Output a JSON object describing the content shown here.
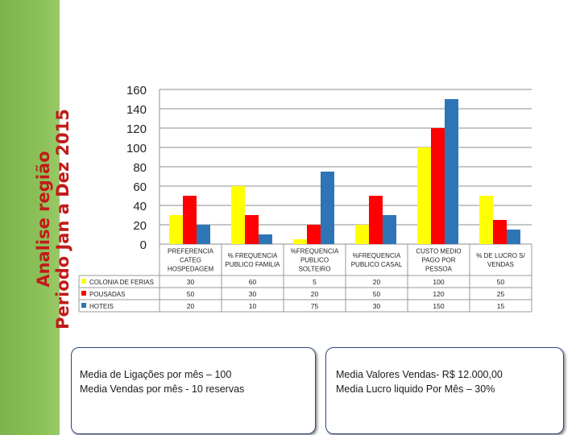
{
  "slide": {
    "side_title_line1": "Analise região",
    "side_title_line2": "Periodo Jan a Dez 2015"
  },
  "notes": {
    "left_line1": "Media de Ligações  por mês – 100",
    "left_line2": "Media Vendas por mês  - 10 reservas",
    "right_line1": "Media Valores Vendas- R$ 12.000,00",
    "right_line2": "Media Lucro liquido Por Mês – 30%"
  },
  "chart_data": {
    "type": "bar",
    "title": "",
    "xlabel": "",
    "ylabel": "",
    "ylim": [
      0,
      160
    ],
    "yticks": [
      0,
      20,
      40,
      60,
      80,
      100,
      120,
      140,
      160
    ],
    "grid": true,
    "legend_placement": "left, as data table",
    "categories": [
      [
        "PREFERENCIA",
        "CATEG",
        "HOSPEDAGEM"
      ],
      [
        "% FREQUENCIA",
        "PUBLICO FAMILIA"
      ],
      [
        "%FREQUENCIA",
        "PUBLICO",
        "SOLTEIRO"
      ],
      [
        "%FREQUENCIA",
        "PUBLICO CASAL"
      ],
      [
        "CUSTO MEDIO",
        "PAGO POR",
        "PESSOA"
      ],
      [
        "% DE LUCRO S/",
        "VENDAS"
      ]
    ],
    "series": [
      {
        "name": "COLONIA DE FERIAS",
        "color": "#ffff00",
        "values": [
          30,
          60,
          5,
          20,
          100,
          50
        ]
      },
      {
        "name": "POUSADAS",
        "color": "#ff0000",
        "values": [
          50,
          30,
          20,
          50,
          120,
          25
        ]
      },
      {
        "name": "HOTEIS",
        "color": "#2e75b6",
        "values": [
          20,
          10,
          75,
          30,
          150,
          15
        ]
      }
    ]
  }
}
